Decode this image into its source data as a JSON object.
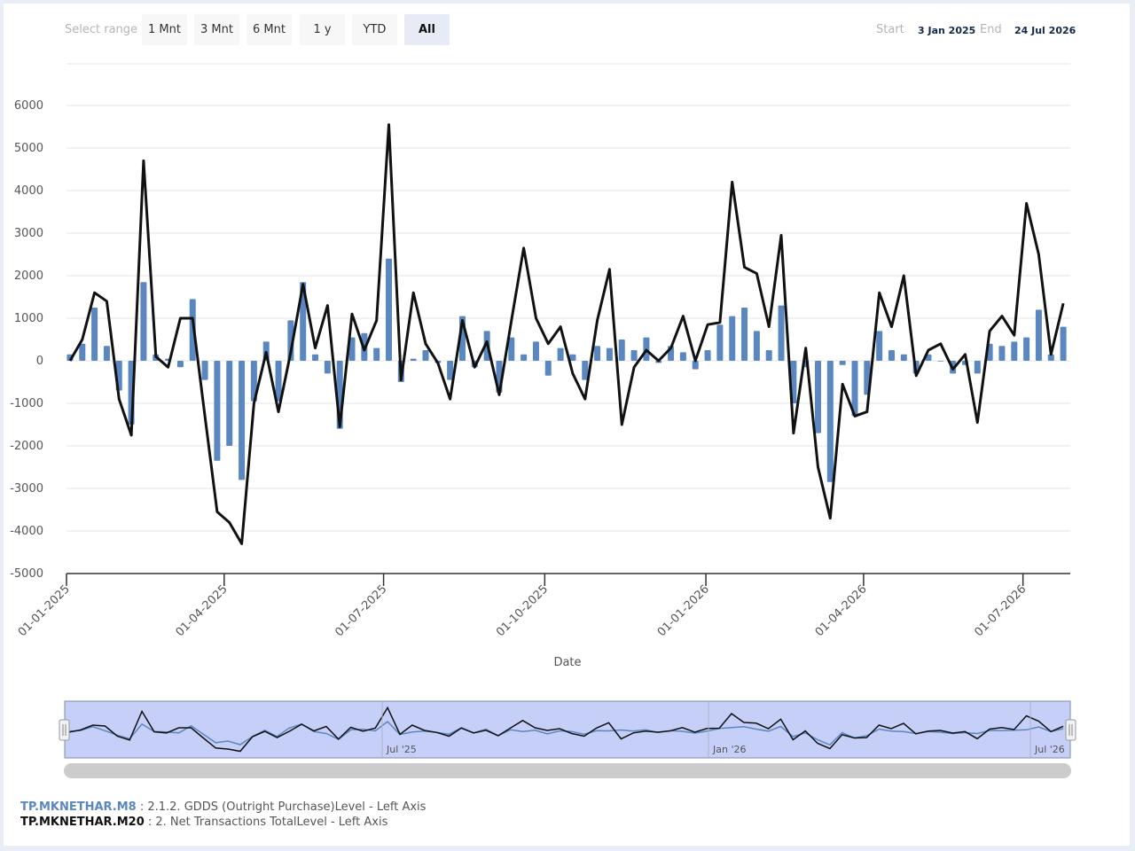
{
  "range_selector": {
    "label": "Select range",
    "buttons": [
      "1 Mnt",
      "3 Mnt",
      "6 Mnt",
      "1 y",
      "YTD",
      "All"
    ],
    "selected": "All"
  },
  "date_range": {
    "start_label": "Start",
    "start": "3 Jan 2025",
    "end_label": "End",
    "end": "24 Jul 2026"
  },
  "navigator": {
    "labels": [
      "Jul '25",
      "Jan '26",
      "Jul '26"
    ]
  },
  "legend": [
    {
      "code": "TP.MKNETHAR.M8",
      "desc": " : 2.1.2. GDDS (Outright Purchase)Level - Left Axis",
      "color": "#5b87c0"
    },
    {
      "code": "TP.MKNETHAR.M20",
      "desc": " : 2. Net Transactions TotalLevel - Left Axis",
      "color": "#111111"
    }
  ],
  "colors": {
    "bars": "#5b87c0",
    "line": "#111111",
    "navigator_fill": "#c6cff7",
    "grid": "#e6e6e6"
  },
  "chart_data": {
    "type": "bar",
    "title": "",
    "xlabel": "Date",
    "ylabel": "",
    "ylim": [
      -5000,
      6500
    ],
    "yticks": [
      -5000,
      -4000,
      -3000,
      -2000,
      -1000,
      0,
      1000,
      2000,
      3000,
      4000,
      5000,
      6000
    ],
    "xlim": [
      "2025-01-01",
      "2026-07-28"
    ],
    "xticks": [
      "01-01-2025",
      "01-04-2025",
      "01-07-2025",
      "01-10-2025",
      "01-01-2026",
      "01-04-2026",
      "01-07-2026"
    ],
    "grid": true,
    "legend_position": "bottom-left",
    "x": [
      "2025-01-03",
      "2025-01-10",
      "2025-01-17",
      "2025-01-24",
      "2025-01-31",
      "2025-02-07",
      "2025-02-14",
      "2025-02-21",
      "2025-02-28",
      "2025-03-07",
      "2025-03-14",
      "2025-03-21",
      "2025-03-28",
      "2025-04-04",
      "2025-04-11",
      "2025-04-18",
      "2025-04-25",
      "2025-05-02",
      "2025-05-09",
      "2025-05-16",
      "2025-05-23",
      "2025-05-30",
      "2025-06-06",
      "2025-06-13",
      "2025-06-20",
      "2025-06-27",
      "2025-07-04",
      "2025-07-11",
      "2025-07-18",
      "2025-07-25",
      "2025-08-01",
      "2025-08-08",
      "2025-08-15",
      "2025-08-22",
      "2025-08-29",
      "2025-09-05",
      "2025-09-12",
      "2025-09-19",
      "2025-09-26",
      "2025-10-03",
      "2025-10-10",
      "2025-10-17",
      "2025-10-24",
      "2025-10-31",
      "2025-11-07",
      "2025-11-14",
      "2025-11-21",
      "2025-11-28",
      "2025-12-05",
      "2025-12-12",
      "2025-12-19",
      "2025-12-26",
      "2026-01-02",
      "2026-01-09",
      "2026-01-16",
      "2026-01-23",
      "2026-01-30",
      "2026-02-06",
      "2026-02-13",
      "2026-02-20",
      "2026-02-27",
      "2026-03-06",
      "2026-03-13",
      "2026-03-20",
      "2026-03-27",
      "2026-04-03",
      "2026-04-10",
      "2026-04-17",
      "2026-04-24",
      "2026-05-01",
      "2026-05-08",
      "2026-05-15",
      "2026-05-22",
      "2026-05-29",
      "2026-06-05",
      "2026-06-12",
      "2026-06-19",
      "2026-06-26",
      "2026-07-03",
      "2026-07-10",
      "2026-07-17",
      "2026-07-24"
    ],
    "series": [
      {
        "name": "TP.MKNETHAR.M8",
        "type": "bar",
        "values": [
          150,
          400,
          1250,
          350,
          -700,
          -1500,
          1850,
          150,
          50,
          -150,
          1450,
          -450,
          -2350,
          -2000,
          -2800,
          -950,
          450,
          -950,
          950,
          1850,
          150,
          -300,
          -1600,
          550,
          650,
          300,
          2400,
          -500,
          50,
          250,
          -50,
          -450,
          1050,
          -150,
          700,
          -750,
          550,
          150,
          450,
          -350,
          300,
          150,
          -450,
          350,
          300,
          500,
          250,
          550,
          -50,
          350,
          200,
          -200,
          250,
          850,
          1050,
          1250,
          700,
          250,
          1300,
          -1000,
          -150,
          -1700,
          -2850,
          -100,
          -1300,
          -800,
          700,
          250,
          150,
          -300,
          150,
          0,
          -300,
          -100,
          -300,
          400,
          350,
          450,
          550,
          1200,
          150,
          800
        ]
      },
      {
        "name": "TP.MKNETHAR.M20",
        "type": "line",
        "values": [
          0,
          500,
          1600,
          1400,
          -900,
          -1750,
          4700,
          100,
          -150,
          1000,
          1000,
          -1300,
          -3550,
          -3800,
          -4300,
          -1000,
          200,
          -1200,
          200,
          1800,
          300,
          1300,
          -1550,
          1100,
          250,
          950,
          5550,
          -450,
          1600,
          400,
          -50,
          -900,
          950,
          -150,
          450,
          -800,
          950,
          2650,
          1000,
          400,
          800,
          -300,
          -900,
          950,
          2150,
          -1500,
          -150,
          250,
          0,
          300,
          1050,
          0,
          850,
          900,
          4200,
          2200,
          2050,
          800,
          2950,
          -1700,
          300,
          -2500,
          -3700,
          -550,
          -1300,
          -1200,
          1600,
          800,
          2000,
          -350,
          250,
          400,
          -200,
          150,
          -1450,
          700,
          1050,
          600,
          3700,
          2500,
          150,
          1350
        ]
      }
    ]
  }
}
